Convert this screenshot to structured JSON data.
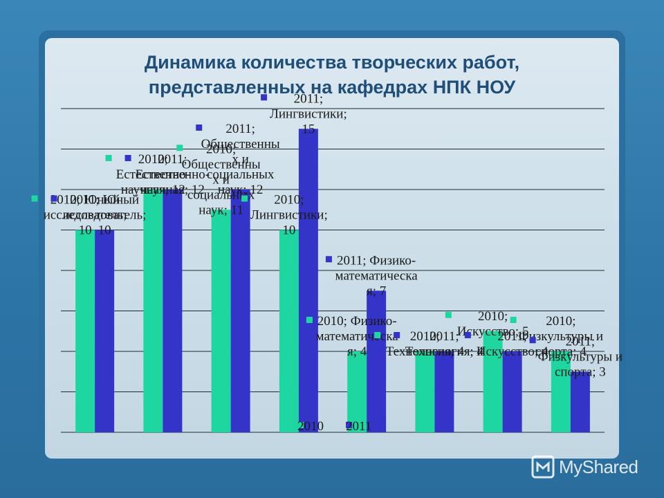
{
  "slide": {
    "title_line1": "Динамика количества творческих работ,",
    "title_line2": "представленных на кафедрах НПК НОУ",
    "watermark": "MyShared"
  },
  "colors": {
    "series_2010": "#1ed7a0",
    "series_2011": "#3434c8",
    "title": "#1f4e79",
    "panel": "#cfe0ea"
  },
  "chart_data": {
    "type": "bar",
    "title": "Динамика количества творческих работ, представленных на кафедрах НПК НОУ",
    "categories": [
      "Юный исследователь",
      "Естественно-научная",
      "Общественных и социальных наук",
      "Лингвистики",
      "Физико-математическая",
      "Технология",
      "Искусство",
      "Физкультуры и спорта"
    ],
    "series": [
      {
        "name": "2010",
        "values": [
          10,
          12,
          11,
          10,
          4,
          4,
          5,
          4
        ],
        "labels": [
          [
            "2010; Юный",
            "исследователь;",
            "10"
          ],
          [
            "2010;",
            "Естественно-",
            "научная; 12"
          ],
          [
            "2010;",
            "Общественны",
            "х и",
            "социальных",
            "наук; 11"
          ],
          [
            "2010;",
            "Лингвистики;",
            "10"
          ],
          [
            "2010; Физико-",
            "математическа",
            "я; 4"
          ],
          [
            "2010;",
            "Технология; 4"
          ],
          [
            "2010;",
            "Искусство; 5"
          ],
          [
            "2010;",
            "Физкультуры и",
            "спорта; 4"
          ]
        ]
      },
      {
        "name": "2011",
        "values": [
          10,
          12,
          12,
          15,
          7,
          4,
          4,
          3
        ],
        "labels": [
          [
            "2011; Юный",
            "исследователь;",
            "10"
          ],
          [
            "2011;",
            "Естественно-",
            "научная; 12"
          ],
          [
            "2011;",
            "Общественны",
            "х и",
            "социальных",
            "наук; 12"
          ],
          [
            "2011;",
            "Лингвистики;",
            "15"
          ],
          [
            "2011; Физико-",
            "математическа",
            "я; 7"
          ],
          [
            "2011;",
            "Технология; 4"
          ],
          [
            "2011;",
            "Искусство; 4"
          ],
          [
            "2011;",
            "Физкультуры и",
            "спорта; 3"
          ]
        ]
      }
    ],
    "ylim": [
      0,
      16
    ],
    "grid": true,
    "legend": {
      "position": "bottom",
      "entries": [
        "2010",
        "2011"
      ]
    }
  }
}
